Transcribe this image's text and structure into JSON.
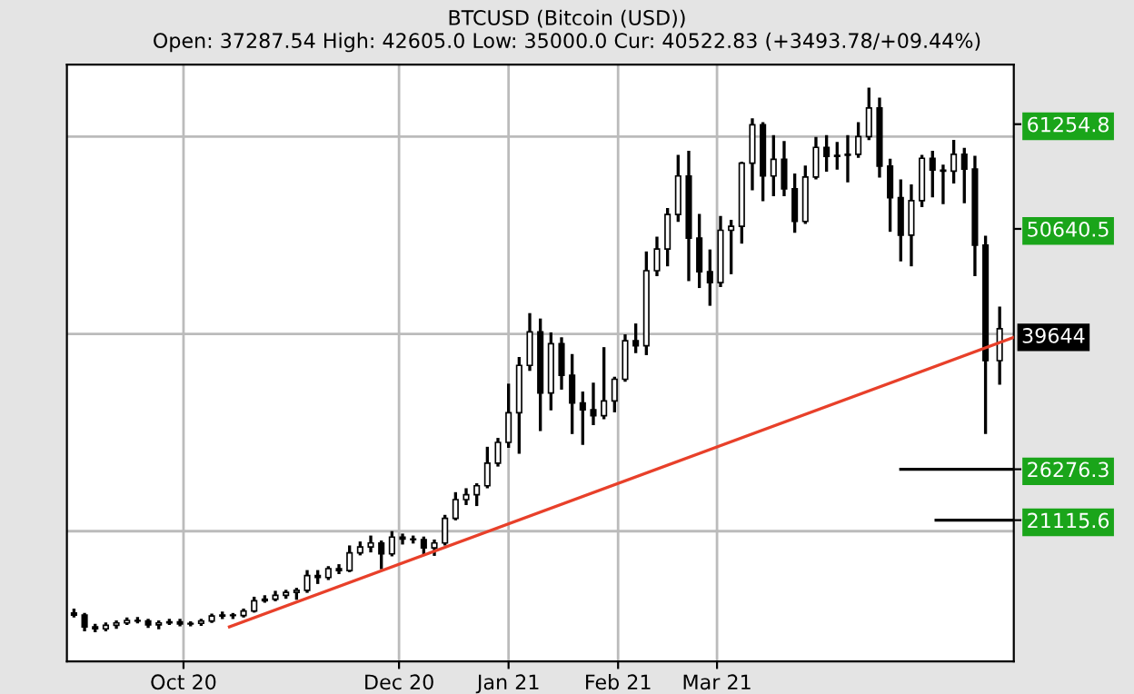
{
  "chart_data": {
    "type": "candlestick",
    "title": "BTCUSD (Bitcoin (USD))",
    "subtitle": "Open: 37287.54 High: 42605.0 Low: 35000.0 Cur: 40522.83 (+3493.78/+09.44%)",
    "color": "#000000",
    "x": [
      "2020-08-31",
      "2020-09-03",
      "2020-09-06",
      "2020-09-09",
      "2020-09-12",
      "2020-09-15",
      "2020-09-18",
      "2020-09-21",
      "2020-09-24",
      "2020-09-27",
      "2020-09-30",
      "2020-10-03",
      "2020-10-06",
      "2020-10-09",
      "2020-10-12",
      "2020-10-15",
      "2020-10-18",
      "2020-10-21",
      "2020-10-24",
      "2020-10-27",
      "2020-10-30",
      "2020-11-02",
      "2020-11-05",
      "2020-11-08",
      "2020-11-11",
      "2020-11-14",
      "2020-11-17",
      "2020-11-20",
      "2020-11-23",
      "2020-11-26",
      "2020-11-29",
      "2020-12-02",
      "2020-12-05",
      "2020-12-08",
      "2020-12-11",
      "2020-12-14",
      "2020-12-17",
      "2020-12-20",
      "2020-12-23",
      "2020-12-26",
      "2020-12-29",
      "2021-01-01",
      "2021-01-04",
      "2021-01-07",
      "2021-01-10",
      "2021-01-13",
      "2021-01-16",
      "2021-01-19",
      "2021-01-22",
      "2021-01-25",
      "2021-01-28",
      "2021-01-31",
      "2021-02-03",
      "2021-02-06",
      "2021-02-09",
      "2021-02-12",
      "2021-02-15",
      "2021-02-18",
      "2021-02-21",
      "2021-02-24",
      "2021-02-27",
      "2021-03-02",
      "2021-03-05",
      "2021-03-08",
      "2021-03-11",
      "2021-03-14",
      "2021-03-17",
      "2021-03-20",
      "2021-03-23",
      "2021-03-26",
      "2021-03-29",
      "2021-04-01",
      "2021-04-04",
      "2021-04-07",
      "2021-04-10",
      "2021-04-13",
      "2021-04-16",
      "2021-04-19",
      "2021-04-22",
      "2021-04-25",
      "2021-04-28",
      "2021-05-01",
      "2021-05-04",
      "2021-05-07",
      "2021-05-10",
      "2021-05-13",
      "2021-05-16",
      "2021-05-20"
    ],
    "ohlc": [
      [
        11700,
        12000,
        11400,
        11500
      ],
      [
        11500,
        11550,
        10000,
        10300
      ],
      [
        10300,
        10450,
        9900,
        10100
      ],
      [
        10100,
        10600,
        10000,
        10450
      ],
      [
        10450,
        10800,
        10250,
        10700
      ],
      [
        10700,
        11100,
        10650,
        10950
      ],
      [
        10950,
        11150,
        10800,
        10900
      ],
      [
        10900,
        10950,
        10350,
        10500
      ],
      [
        10500,
        10800,
        10200,
        10700
      ],
      [
        10700,
        10950,
        10650,
        10800
      ],
      [
        10800,
        10950,
        10500,
        10600
      ],
      [
        10600,
        10700,
        10500,
        10650
      ],
      [
        10650,
        10950,
        10550,
        10900
      ],
      [
        10900,
        11500,
        10850,
        11400
      ],
      [
        11400,
        11700,
        11250,
        11500
      ],
      [
        11500,
        11550,
        11250,
        11450
      ],
      [
        11450,
        12000,
        11400,
        11900
      ],
      [
        11900,
        13200,
        11900,
        12950
      ],
      [
        12950,
        13350,
        12900,
        13100
      ],
      [
        13100,
        13800,
        13050,
        13500
      ],
      [
        13500,
        13900,
        13300,
        13800
      ],
      [
        13800,
        14100,
        13200,
        14000
      ],
      [
        14000,
        15900,
        13900,
        15500
      ],
      [
        15500,
        15900,
        14800,
        15300
      ],
      [
        15300,
        16300,
        15200,
        16200
      ],
      [
        16200,
        16500,
        15800,
        16000
      ],
      [
        16000,
        18400,
        16000,
        17800
      ],
      [
        17800,
        18800,
        17700,
        18400
      ],
      [
        18400,
        19400,
        18000,
        18800
      ],
      [
        18800,
        18900,
        16300,
        17700
      ],
      [
        17700,
        19850,
        17600,
        19400
      ],
      [
        19400,
        19600,
        18800,
        19200
      ],
      [
        19200,
        19400,
        18900,
        19150
      ],
      [
        19150,
        19300,
        17700,
        18300
      ],
      [
        18300,
        19000,
        17650,
        18800
      ],
      [
        18800,
        21500,
        18700,
        21300
      ],
      [
        21300,
        23800,
        21250,
        23200
      ],
      [
        23200,
        24200,
        22800,
        23700
      ],
      [
        23700,
        24700,
        22700,
        24600
      ],
      [
        24600,
        28400,
        24500,
        26900
      ],
      [
        26900,
        29300,
        26700,
        29000
      ],
      [
        29000,
        34800,
        28600,
        32000
      ],
      [
        32000,
        37500,
        28000,
        36800
      ],
      [
        36800,
        41950,
        36400,
        40200
      ],
      [
        40200,
        41400,
        30300,
        34000
      ],
      [
        34000,
        40000,
        32400,
        39000
      ],
      [
        39000,
        39500,
        34500,
        35800
      ],
      [
        35800,
        37800,
        30000,
        33000
      ],
      [
        33000,
        34000,
        28900,
        32300
      ],
      [
        32300,
        34900,
        30900,
        31700
      ],
      [
        31700,
        38500,
        31500,
        33200
      ],
      [
        33200,
        35500,
        32200,
        35400
      ],
      [
        35400,
        39800,
        35300,
        39300
      ],
      [
        39300,
        40900,
        38200,
        38800
      ],
      [
        38800,
        48200,
        38000,
        46400
      ],
      [
        46400,
        49700,
        46000,
        48600
      ],
      [
        48600,
        52600,
        47000,
        52100
      ],
      [
        52100,
        58000,
        51500,
        56000
      ],
      [
        56000,
        58400,
        45500,
        49700
      ],
      [
        49700,
        52000,
        44800,
        46300
      ],
      [
        46300,
        48400,
        43000,
        45200
      ],
      [
        45200,
        51800,
        44900,
        50500
      ],
      [
        50500,
        51400,
        46200,
        50900
      ],
      [
        50900,
        57300,
        49300,
        57300
      ],
      [
        57300,
        61700,
        54700,
        61200
      ],
      [
        61200,
        61300,
        53600,
        56000
      ],
      [
        56000,
        60000,
        54100,
        57700
      ],
      [
        57700,
        59400,
        54100,
        54700
      ],
      [
        54700,
        56100,
        50400,
        51400
      ],
      [
        51400,
        56900,
        51300,
        55900
      ],
      [
        55900,
        59800,
        55800,
        58900
      ],
      [
        58900,
        60000,
        56600,
        58000
      ],
      [
        58000,
        59300,
        56800,
        58100
      ],
      [
        58100,
        60000,
        55500,
        58200
      ],
      [
        58200,
        61300,
        58000,
        60000
      ],
      [
        60000,
        64800,
        59800,
        62900
      ],
      [
        62900,
        63800,
        56000,
        57000
      ],
      [
        57000,
        57600,
        50500,
        53800
      ],
      [
        53800,
        55500,
        47500,
        50000
      ],
      [
        50000,
        55000,
        47000,
        53500
      ],
      [
        53500,
        58000,
        53000,
        57800
      ],
      [
        57800,
        58400,
        54000,
        56600
      ],
      [
        56600,
        57000,
        53300,
        56500
      ],
      [
        56500,
        59500,
        55400,
        58200
      ],
      [
        58200,
        58700,
        53400,
        56700
      ],
      [
        56700,
        57900,
        46000,
        49000
      ],
      [
        49000,
        49800,
        30000,
        37300
      ],
      [
        37287.54,
        42605,
        35000,
        40522.83
      ]
    ],
    "series": [
      {
        "type": "line",
        "color": "#e8402a",
        "x": [
          "2020-10-14",
          "2021-05-24"
        ],
        "values": [
          10300,
          39644
        ],
        "value_labels": [
          null,
          "39644"
        ]
      },
      {
        "type": "line",
        "color": "#000000",
        "x": [
          "2021-04-22",
          "2021-05-24"
        ],
        "values": [
          26276.3,
          26276.3
        ]
      },
      {
        "type": "line",
        "color": "#000000",
        "x": [
          "2021-05-02",
          "2021-05-24"
        ],
        "values": [
          21115.6,
          21115.6
        ]
      }
    ],
    "ref_lines": [
      {
        "axis": "y",
        "value": 20000,
        "color": "#bbbbbb"
      },
      {
        "axis": "y",
        "value": 40000,
        "color": "#bbbbbb"
      },
      {
        "axis": "y",
        "value": 60000,
        "color": "#bbbbbb"
      }
    ],
    "xlim": [
      "2020-08-29",
      "2021-05-24"
    ],
    "xticks": [
      {
        "value": "2020-10-01",
        "label": "Oct 20"
      },
      {
        "value": "2020-12-01",
        "label": "Dec 20"
      },
      {
        "value": "2021-01-01",
        "label": "Jan 21"
      },
      {
        "value": "2021-02-01",
        "label": "Feb 21"
      },
      {
        "value": "2021-03-01",
        "label": "Mar 21"
      }
    ],
    "ylim": [
      6800,
      67300
    ],
    "yticks": [
      21115.6,
      26276.3,
      50640.5,
      61254.8
    ],
    "grid": "x"
  }
}
